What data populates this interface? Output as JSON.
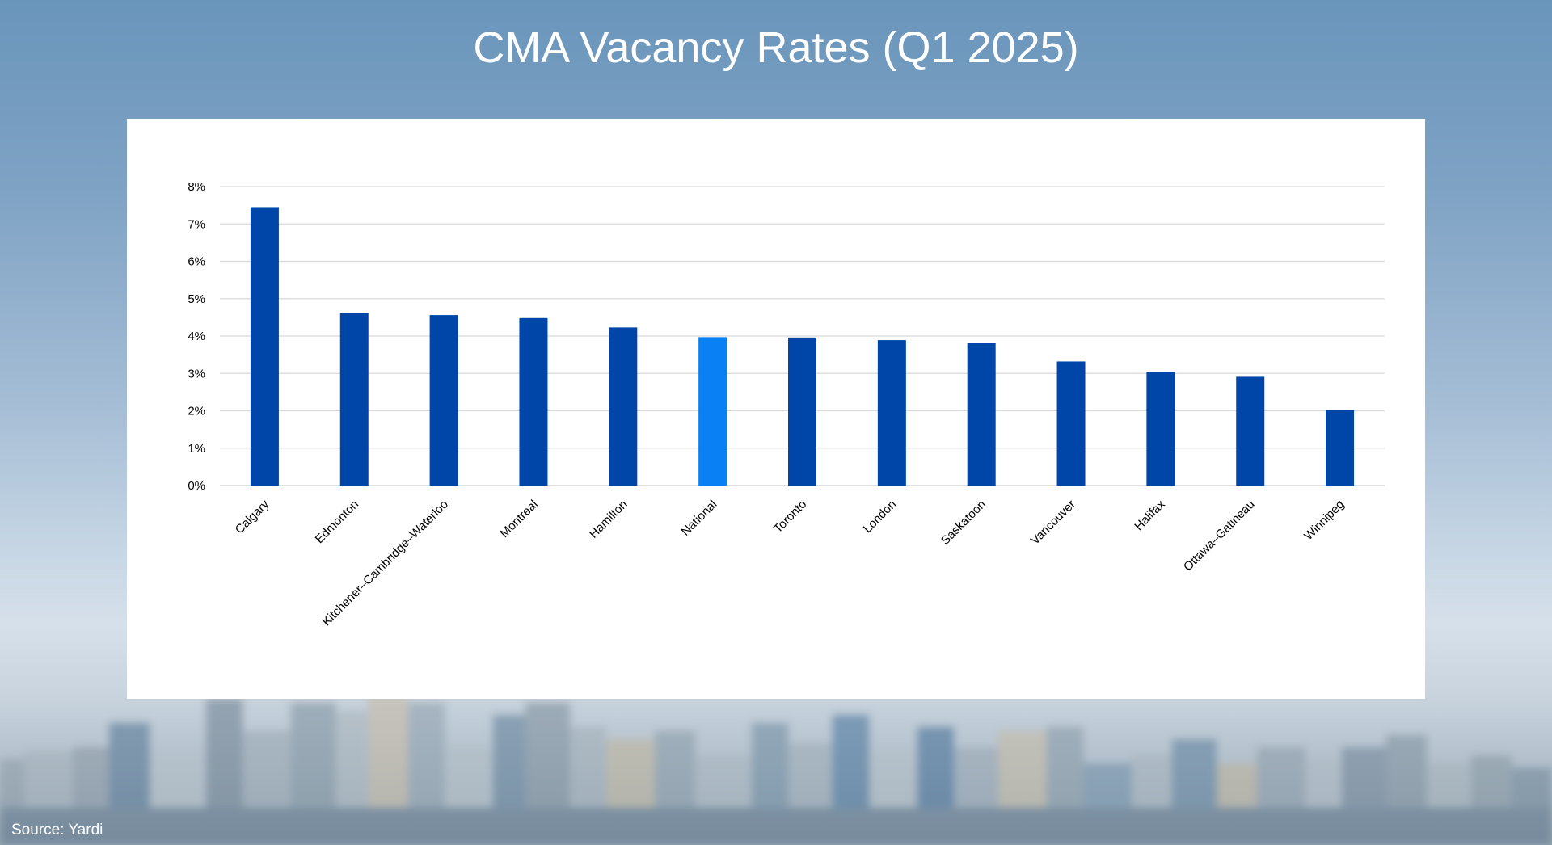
{
  "slide": {
    "title": "CMA Vacancy Rates (Q1 2025)",
    "source": "Source: Yardi",
    "background": "blurred-city-skyline"
  },
  "colors": {
    "bar": "#0046A8",
    "highlight_bar": "#0A80F5",
    "grid": "#D9D9D9",
    "axis_text": "#000000",
    "title_text": "#FFFFFF"
  },
  "chart_data": {
    "type": "bar",
    "title": "",
    "xlabel": "",
    "ylabel": "",
    "categories": [
      "Calgary",
      "Edmonton",
      "Kitchener–Cambridge–Waterloo",
      "Montreal",
      "Hamilton",
      "National",
      "Toronto",
      "London",
      "Saskatoon",
      "Vancouver",
      "Halifax",
      "Ottawa–Gatineau",
      "Winnipeg"
    ],
    "values": [
      7.45,
      4.62,
      4.56,
      4.48,
      4.23,
      3.97,
      3.96,
      3.89,
      3.82,
      3.32,
      3.04,
      2.91,
      2.02
    ],
    "highlight": "National",
    "ylim": [
      0,
      8
    ],
    "yticks": [
      0,
      1,
      2,
      3,
      4,
      5,
      6,
      7,
      8
    ],
    "ytick_labels": [
      "0%",
      "1%",
      "2%",
      "3%",
      "4%",
      "5%",
      "6%",
      "7%",
      "8%"
    ],
    "grid": true,
    "legend": "none"
  }
}
